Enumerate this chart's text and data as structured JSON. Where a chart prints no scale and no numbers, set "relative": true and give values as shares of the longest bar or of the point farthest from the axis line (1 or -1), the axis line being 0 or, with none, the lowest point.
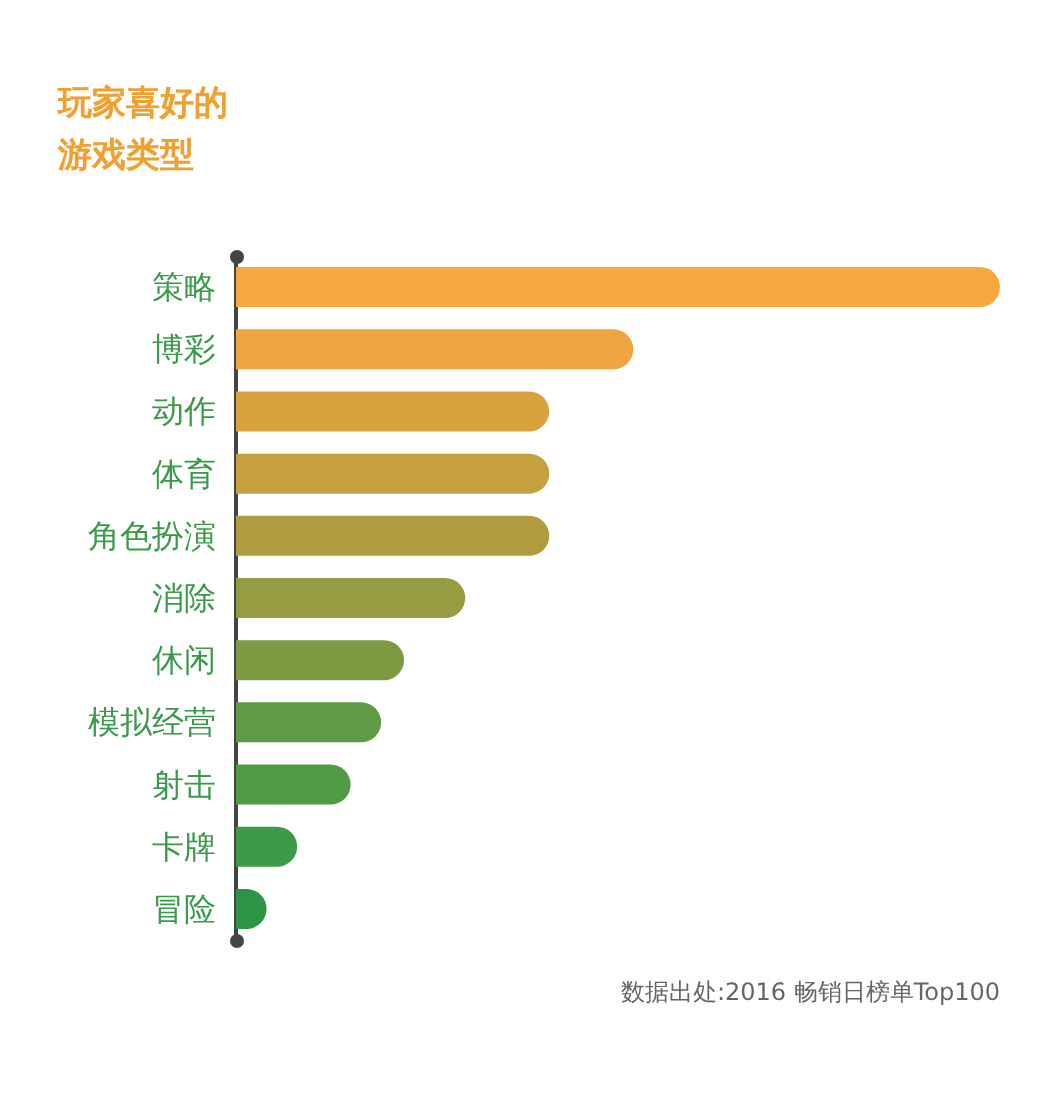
{
  "chart_data": {
    "type": "bar",
    "orientation": "horizontal",
    "relative": true,
    "title": "玩家喜好的游戏类型",
    "categories": [
      "策略",
      "博彩",
      "动作",
      "体育",
      "角色扮演",
      "消除",
      "休闲",
      "模拟经营",
      "射击",
      "卡牌",
      "冒险"
    ],
    "values": [
      1,
      0.52,
      0.41,
      0.41,
      0.41,
      0.3,
      0.22,
      0.19,
      0.15,
      0.08,
      0.04
    ],
    "colors": [
      "#f6a83f",
      "#eea53f",
      "#d8a23f",
      "#c6a03f",
      "#b09c3e",
      "#969c42",
      "#7d9a43",
      "#5f9a44",
      "#4f9b46",
      "#3c9a48",
      "#2d9445"
    ],
    "grid": false,
    "annotations": [
      "数据出处:2016 畅销日榜单Top100"
    ]
  }
}
